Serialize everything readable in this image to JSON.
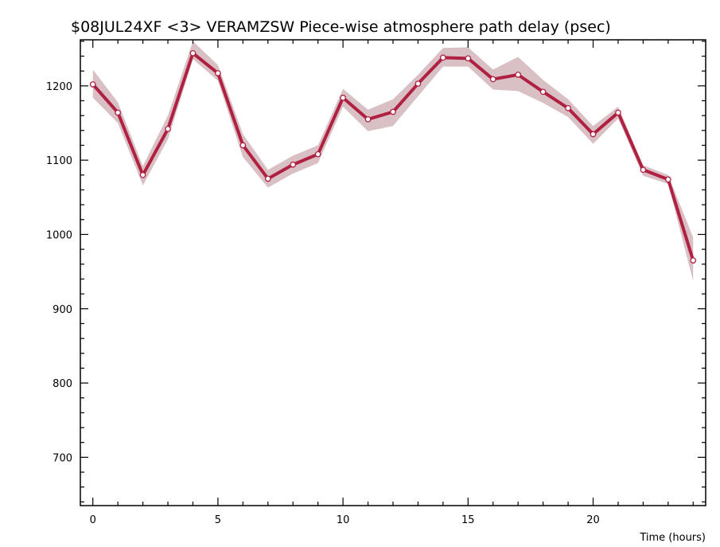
{
  "chart_data": {
    "type": "line",
    "title": "$08JUL24XF <3>   VERAMZSW  Piece-wise atmosphere path delay (psec)",
    "xlabel": "Time (hours)",
    "ylabel": "",
    "xlim": [
      -0.5,
      24.5
    ],
    "ylim": [
      635,
      1262
    ],
    "x_major_ticks": [
      0,
      5,
      10,
      15,
      20
    ],
    "x_minor_step": 1,
    "y_major_ticks": [
      700,
      800,
      900,
      1000,
      1100,
      1200
    ],
    "y_minor_step": 20,
    "grid": false,
    "legend": "none",
    "series": [
      {
        "x": [
          0,
          1,
          2,
          3,
          4,
          5,
          6,
          7,
          8,
          9,
          10,
          11,
          12,
          13,
          14,
          15,
          16,
          17,
          18,
          19,
          20,
          21,
          22,
          23,
          24
        ],
        "values": [
          1202,
          1164,
          1080,
          1142,
          1244,
          1217,
          1120,
          1075,
          1094,
          1108,
          1184,
          1155,
          1165,
          1203,
          1238,
          1237,
          1209,
          1215,
          1192,
          1170,
          1135,
          1164,
          1087,
          1074,
          965
        ],
        "upper": [
          1222,
          1178,
          1092,
          1160,
          1260,
          1228,
          1135,
          1087,
          1106,
          1120,
          1196,
          1168,
          1182,
          1215,
          1251,
          1252,
          1222,
          1239,
          1208,
          1182,
          1146,
          1172,
          1093,
          1080,
          996
        ],
        "lower": [
          1184,
          1150,
          1066,
          1128,
          1236,
          1207,
          1104,
          1063,
          1082,
          1096,
          1172,
          1139,
          1146,
          1186,
          1226,
          1226,
          1195,
          1193,
          1177,
          1158,
          1122,
          1156,
          1079,
          1068,
          937
        ],
        "color": "#b02040",
        "band_color": "#d8c0c4"
      }
    ]
  }
}
